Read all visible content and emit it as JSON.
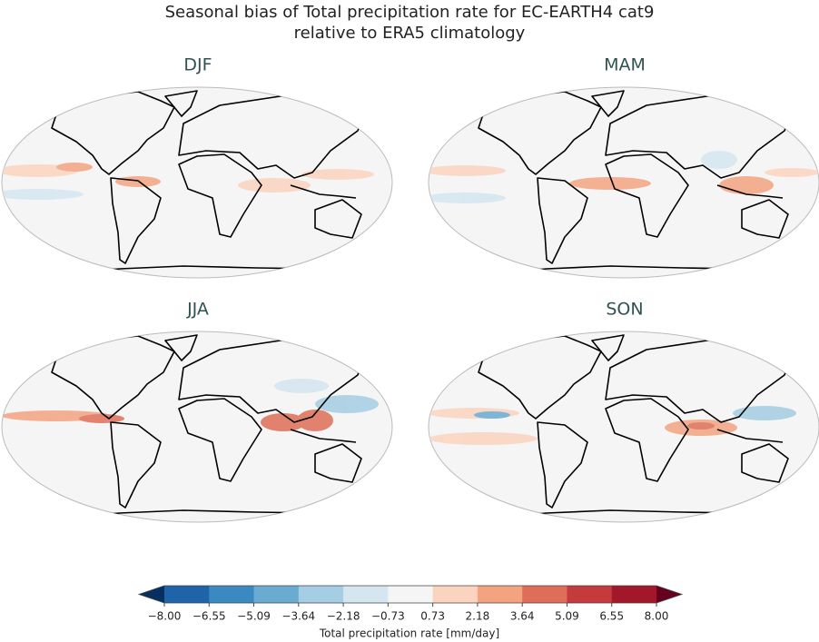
{
  "title": [
    "Seasonal bias of Total precipitation rate for EC-EARTH4 cat9",
    "relative to ERA5 climatology"
  ],
  "panels": [
    {
      "title": "DJF"
    },
    {
      "title": "MAM"
    },
    {
      "title": "JJA"
    },
    {
      "title": "SON"
    }
  ],
  "colorbar": {
    "label": "Total precipitation rate [mm/day]",
    "extend": "both",
    "ticks": [
      {
        "value": -8,
        "label": "−8.00"
      },
      {
        "value": -6.55,
        "label": "−6.55"
      },
      {
        "value": -5.09,
        "label": "−5.09"
      },
      {
        "value": -3.64,
        "label": "−3.64"
      },
      {
        "value": -2.18,
        "label": "−2.18"
      },
      {
        "value": -0.73,
        "label": "−0.73"
      },
      {
        "value": 0.73,
        "label": "0.73"
      },
      {
        "value": 2.18,
        "label": "2.18"
      },
      {
        "value": 3.64,
        "label": "3.64"
      },
      {
        "value": 5.09,
        "label": "5.09"
      },
      {
        "value": 6.55,
        "label": "6.55"
      },
      {
        "value": 8,
        "label": "8.00"
      }
    ],
    "colors": [
      "#053061",
      "#1f63a8",
      "#3a89c1",
      "#6aabd1",
      "#a5cde3",
      "#d5e6f0",
      "#f5f5f5",
      "#fbd4bf",
      "#f3a380",
      "#de6e58",
      "#c53a3c",
      "#a3172b",
      "#67001f"
    ]
  }
}
